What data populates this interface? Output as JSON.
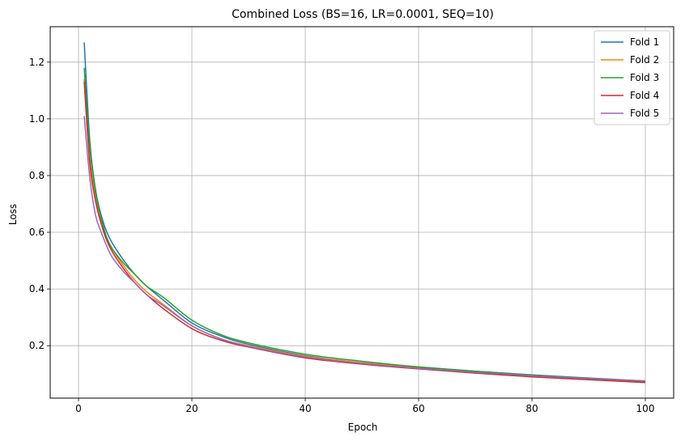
{
  "chart_data": {
    "type": "line",
    "title": "Combined Loss (BS=16, LR=0.0001, SEQ=10)",
    "xlabel": "Epoch",
    "ylabel": "Loss",
    "xlim": [
      -5,
      105
    ],
    "ylim": [
      0.015,
      1.325
    ],
    "xticks": [
      0,
      20,
      40,
      60,
      80,
      100
    ],
    "yticks": [
      0.2,
      0.4,
      0.6,
      0.8,
      1.0,
      1.2
    ],
    "ytick_labels": [
      "0.2",
      "0.4",
      "0.6",
      "0.8",
      "1.0",
      "1.2"
    ],
    "grid": true,
    "legend_position": "top-right",
    "x": [
      1,
      2,
      3,
      4,
      5,
      6,
      8,
      10,
      12,
      15,
      20,
      25,
      30,
      40,
      50,
      60,
      70,
      80,
      90,
      100
    ],
    "series": [
      {
        "name": "Fold 1",
        "color": "#1f77b4",
        "values": [
          1.27,
          0.92,
          0.75,
          0.66,
          0.6,
          0.56,
          0.5,
          0.45,
          0.41,
          0.36,
          0.28,
          0.235,
          0.205,
          0.165,
          0.14,
          0.125,
          0.11,
          0.097,
          0.086,
          0.075
        ]
      },
      {
        "name": "Fold 2",
        "color": "#ff7f0e",
        "values": [
          1.14,
          0.86,
          0.72,
          0.64,
          0.58,
          0.54,
          0.48,
          0.43,
          0.39,
          0.345,
          0.27,
          0.225,
          0.2,
          0.163,
          0.14,
          0.122,
          0.107,
          0.094,
          0.084,
          0.073
        ]
      },
      {
        "name": "Fold 3",
        "color": "#2ca02c",
        "values": [
          1.18,
          0.9,
          0.74,
          0.65,
          0.58,
          0.54,
          0.49,
          0.45,
          0.41,
          0.37,
          0.29,
          0.24,
          0.21,
          0.17,
          0.145,
          0.125,
          0.11,
          0.096,
          0.085,
          0.074
        ]
      },
      {
        "name": "Fold 4",
        "color": "#d62728",
        "values": [
          1.13,
          0.84,
          0.71,
          0.63,
          0.57,
          0.53,
          0.47,
          0.42,
          0.38,
          0.33,
          0.26,
          0.22,
          0.195,
          0.157,
          0.135,
          0.118,
          0.103,
          0.09,
          0.08,
          0.07
        ]
      },
      {
        "name": "Fold 5",
        "color": "#9467bd",
        "values": [
          1.01,
          0.79,
          0.66,
          0.6,
          0.55,
          0.51,
          0.46,
          0.42,
          0.38,
          0.34,
          0.27,
          0.225,
          0.197,
          0.16,
          0.137,
          0.12,
          0.106,
          0.094,
          0.084,
          0.076
        ]
      }
    ]
  }
}
